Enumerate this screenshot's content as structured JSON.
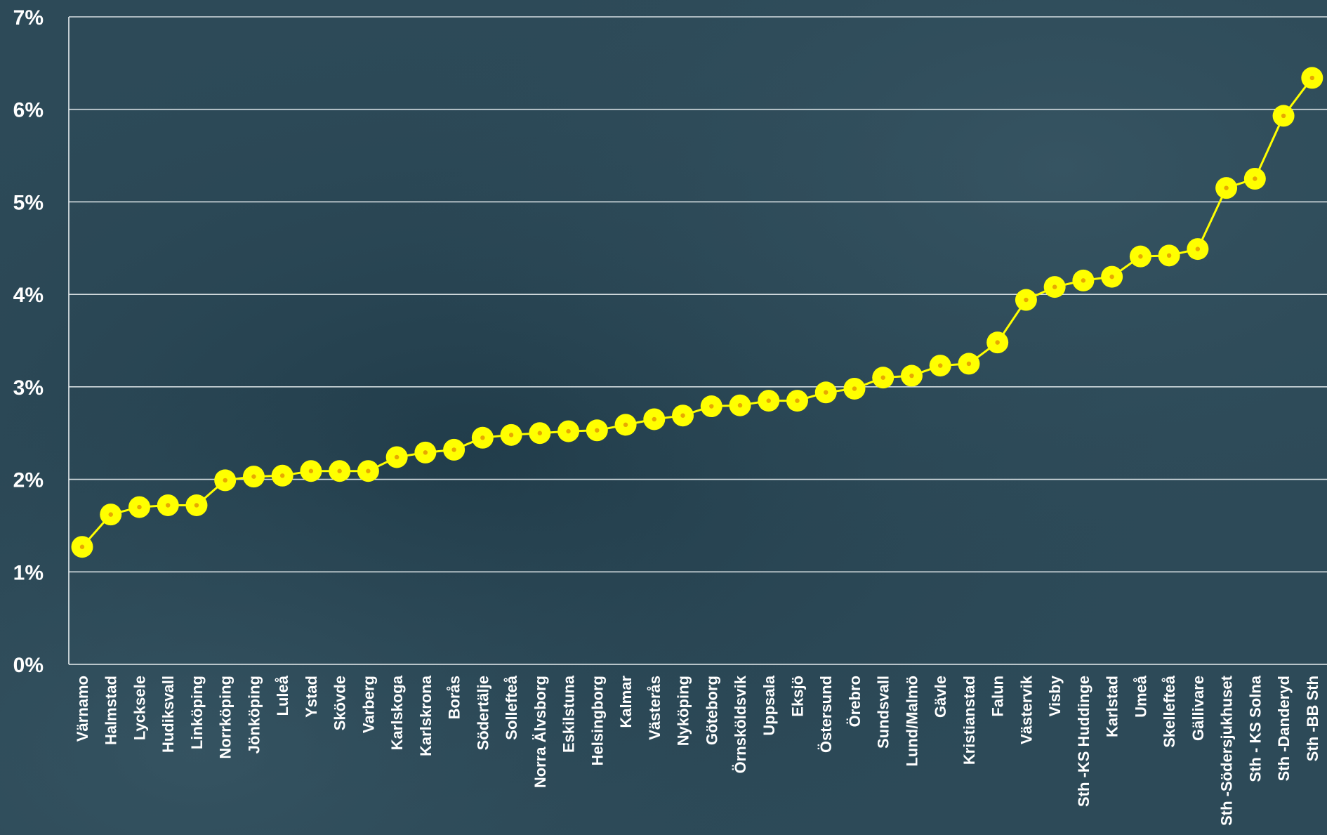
{
  "chart_data": {
    "type": "line",
    "title": "",
    "xlabel": "",
    "ylabel": "",
    "ylim": [
      0,
      7
    ],
    "y_ticks": [
      "0%",
      "1%",
      "2%",
      "3%",
      "4%",
      "5%",
      "6%",
      "7%"
    ],
    "y_unit": "%",
    "grid": true,
    "legend": "none",
    "categories": [
      "Värnamo",
      "Halmstad",
      "Lycksele",
      "Hudiksvall",
      "Linköping",
      "Norrköping",
      "Jönköping",
      "Luleå",
      "Ystad",
      "Skövde",
      "Varberg",
      "Karlskoga",
      "Karlskrona",
      "Borås",
      "Södertälje",
      "Sollefteå",
      "Norra Älvsborg",
      "Eskilstuna",
      "Helsingborg",
      "Kalmar",
      "Västerås",
      "Nyköping",
      "Göteborg",
      "Örnsköldsvik",
      "Uppsala",
      "Eksjö",
      "Östersund",
      "Örebro",
      "Sundsvall",
      "Lund/Malmö",
      "Gävle",
      "Kristianstad",
      "Falun",
      "Västervik",
      "Visby",
      "Sth -KS Huddinge",
      "Karlstad",
      "Umeå",
      "Skellefteå",
      "Gällivare",
      "Sth -Södersjukhuset",
      "Sth - KS Solna",
      "Sth -Danderyd",
      "Sth -BB Sth"
    ],
    "series": [
      {
        "values": [
          1.27,
          1.62,
          1.7,
          1.72,
          1.72,
          1.99,
          2.03,
          2.04,
          2.09,
          2.09,
          2.09,
          2.24,
          2.29,
          2.32,
          2.45,
          2.48,
          2.5,
          2.52,
          2.53,
          2.59,
          2.65,
          2.69,
          2.79,
          2.8,
          2.85,
          2.85,
          2.94,
          2.98,
          3.1,
          3.12,
          3.23,
          3.25,
          3.48,
          3.94,
          4.08,
          4.15,
          4.19,
          4.41,
          4.42,
          4.49,
          5.15,
          5.25,
          5.93,
          6.34
        ]
      }
    ],
    "colors": {
      "background": "#2d4a58",
      "line": "#ffff00",
      "marker": "#ffff00",
      "marker_center": "#e8a800",
      "grid": "#e8eef0",
      "axis": "#e8eef0",
      "text": "#ffffff"
    }
  }
}
